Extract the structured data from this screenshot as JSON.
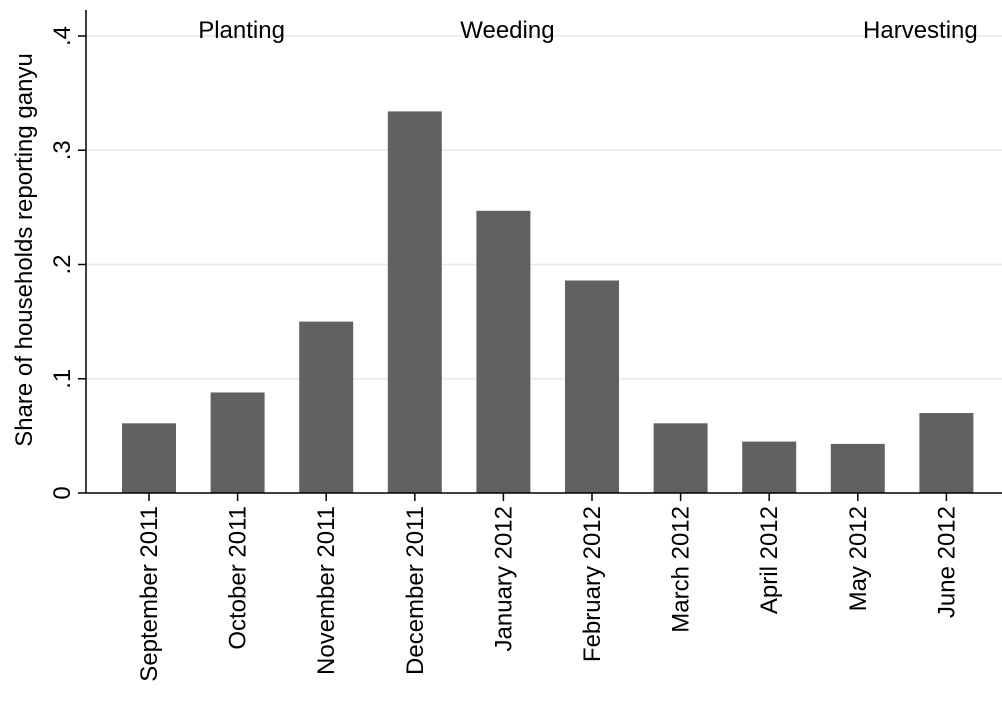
{
  "chart_data": {
    "type": "bar",
    "categories": [
      "September 2011",
      "October 2011",
      "November 2011",
      "December 2011",
      "January 2012",
      "February 2012",
      "March 2012",
      "April 2012",
      "May 2012",
      "June 2012"
    ],
    "values": [
      0.061,
      0.088,
      0.15,
      0.334,
      0.247,
      0.186,
      0.061,
      0.045,
      0.043,
      0.07
    ],
    "ylabel": "Share of households reporting ganyu",
    "ylim": [
      0,
      0.4
    ],
    "yticks": [
      0,
      0.1,
      0.2,
      0.3,
      0.4
    ],
    "ytick_labels": [
      "0",
      ".1",
      ".2",
      ".3",
      ".4"
    ],
    "annotations": [
      {
        "text": "Planting",
        "x_category": "October 2011"
      },
      {
        "text": "Weeding",
        "x_category": "January 2012"
      },
      {
        "text": "Harvesting",
        "x_category": "June 2012"
      }
    ],
    "grid": true,
    "bar_color": "#616161",
    "grid_color": "#e8e8e8"
  }
}
